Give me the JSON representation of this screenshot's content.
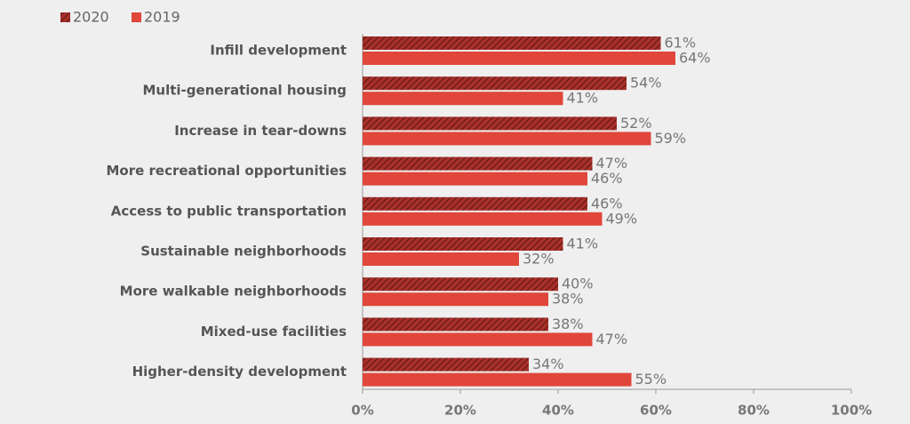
{
  "chart_data": {
    "type": "hbar",
    "categories": [
      "Infill development",
      "Multi-generational housing",
      "Increase in tear-downs",
      "More recreational opportunities",
      "Access to public transportation",
      "Sustainable neighborhoods",
      "More walkable neighborhoods",
      "Mixed-use facilities",
      "Higher-density development"
    ],
    "series": [
      {
        "name": "2020",
        "color": "#a8302a",
        "hatch": true,
        "values": [
          61,
          54,
          52,
          47,
          46,
          41,
          40,
          38,
          34
        ],
        "value_labels": [
          "61%",
          "54%",
          "52%",
          "47%",
          "46%",
          "41%",
          "40%",
          "38%",
          "34%"
        ]
      },
      {
        "name": "2019",
        "color": "#e0463a",
        "hatch": false,
        "values": [
          64,
          41,
          59,
          46,
          49,
          32,
          38,
          47,
          55
        ],
        "value_labels": [
          "64%",
          "41%",
          "59%",
          "46%",
          "49%",
          "32%",
          "38%",
          "47%",
          "55%"
        ]
      }
    ],
    "xlim": [
      0,
      100
    ],
    "xticks": [
      {
        "value": 0,
        "label": "0%"
      },
      {
        "value": 20,
        "label": "20%"
      },
      {
        "value": 40,
        "label": "40%"
      },
      {
        "value": 60,
        "label": "60%"
      },
      {
        "value": 80,
        "label": "80%"
      },
      {
        "value": 100,
        "label": "100%"
      }
    ]
  }
}
